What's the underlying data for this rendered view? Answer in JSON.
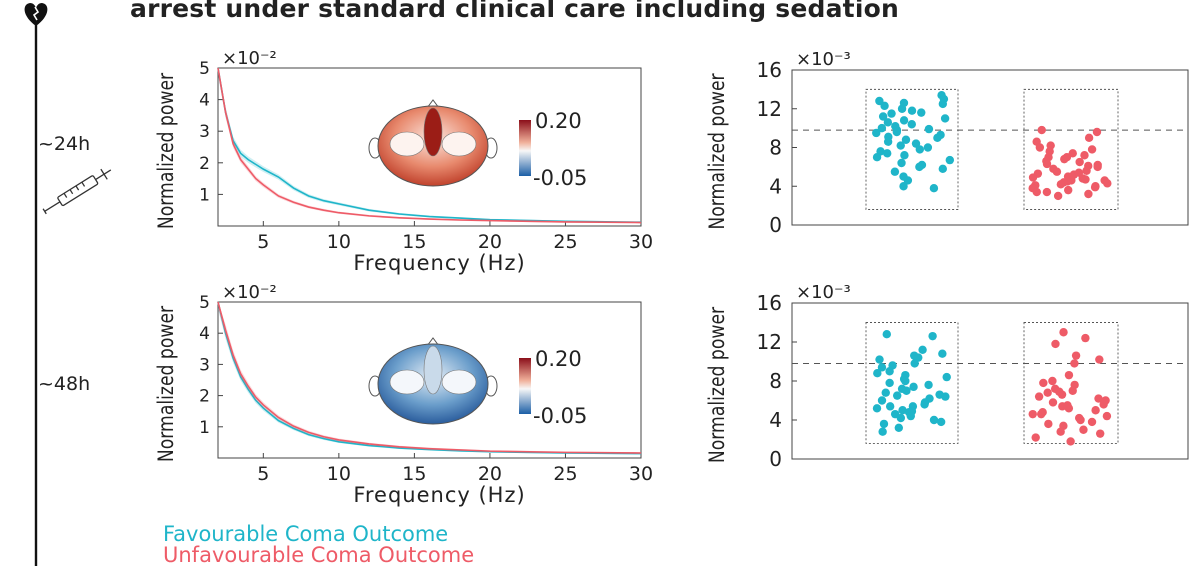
{
  "title": "arrest under standard clinical care including sedation",
  "timepoints": [
    "~24h",
    "~48h"
  ],
  "legend": [
    {
      "label": "Favourable Coma Outcome",
      "color": "#1fb5c9"
    },
    {
      "label": "Unfavourable Coma Outcome",
      "color": "#ee5b67"
    }
  ],
  "icons": [
    "heart-broken-icon",
    "syringe-icon"
  ],
  "chart_data": [
    {
      "type": "line",
      "panel": "spectrum-24h",
      "title": "",
      "xlabel": "Frequency (Hz)",
      "ylabel": "Normalized power",
      "ylim": [
        0,
        5
      ],
      "xlim": [
        2,
        30
      ],
      "exponent_label": "×10⁻²",
      "xticks": [
        "5",
        "10",
        "15",
        "20",
        "25",
        "30"
      ],
      "yticks": [
        "1",
        "2",
        "3",
        "4",
        "5"
      ],
      "x": [
        2,
        2.5,
        3,
        3.5,
        4,
        4.5,
        5,
        6,
        7,
        8,
        9,
        10,
        12,
        14,
        16,
        18,
        20,
        25,
        30
      ],
      "series": [
        {
          "name": "Favourable Coma Outcome",
          "color": "#1fb5c9",
          "values": [
            5.0,
            3.6,
            2.7,
            2.3,
            2.1,
            1.95,
            1.8,
            1.55,
            1.2,
            0.95,
            0.8,
            0.7,
            0.5,
            0.38,
            0.3,
            0.25,
            0.2,
            0.15,
            0.12
          ]
        },
        {
          "name": "Unfavourable Coma Outcome",
          "color": "#ee5b67",
          "values": [
            5.0,
            3.6,
            2.6,
            2.1,
            1.8,
            1.5,
            1.3,
            0.95,
            0.75,
            0.6,
            0.5,
            0.42,
            0.32,
            0.26,
            0.22,
            0.19,
            0.17,
            0.13,
            0.11
          ]
        }
      ],
      "topomap": {
        "style": "red",
        "colorbar_labels": [
          "0.20",
          "-0.05"
        ]
      }
    },
    {
      "type": "scatter",
      "panel": "scatter-24h",
      "title": "",
      "xlabel": "",
      "ylabel": "Normalized power",
      "ylim": [
        0,
        16
      ],
      "exponent_label": "×10⁻³",
      "yticks": [
        "0",
        "4",
        "8",
        "12",
        "16"
      ],
      "reference_line": 9.8,
      "groups": [
        {
          "name": "Favourable Coma Outcome",
          "color": "#1fb5c9",
          "values": [
            13.4,
            13.0,
            12.8,
            12.6,
            12.5,
            12.3,
            12.0,
            11.8,
            11.6,
            11.5,
            11.2,
            11.0,
            10.8,
            10.6,
            10.4,
            10.2,
            10.0,
            9.9,
            9.8,
            9.6,
            9.5,
            9.3,
            9.1,
            9.0,
            8.8,
            8.6,
            8.4,
            8.2,
            8.0,
            7.8,
            7.6,
            7.4,
            7.2,
            7.0,
            6.7,
            6.4,
            6.2,
            6.0,
            5.8,
            5.5,
            5.0,
            4.6,
            4.0,
            3.8
          ]
        },
        {
          "name": "Unfavourable Coma Outcome",
          "color": "#ee5b67",
          "values": [
            9.8,
            9.6,
            9.0,
            8.6,
            8.2,
            8.0,
            7.8,
            7.6,
            7.4,
            7.2,
            7.0,
            6.8,
            6.6,
            6.5,
            6.3,
            6.1,
            6.0,
            5.8,
            5.6,
            5.5,
            5.3,
            5.2,
            5.0,
            4.9,
            4.8,
            4.7,
            4.6,
            4.5,
            4.4,
            4.3,
            4.2,
            4.1,
            4.0,
            3.9,
            3.8,
            3.6,
            3.4,
            3.2,
            3.0,
            4.6,
            5.4,
            6.2,
            7.0,
            3.4
          ]
        }
      ]
    },
    {
      "type": "line",
      "panel": "spectrum-48h",
      "title": "",
      "xlabel": "Frequency (Hz)",
      "ylabel": "Normalized power",
      "ylim": [
        0,
        5
      ],
      "xlim": [
        2,
        30
      ],
      "exponent_label": "×10⁻²",
      "xticks": [
        "5",
        "10",
        "15",
        "20",
        "25",
        "30"
      ],
      "yticks": [
        "1",
        "2",
        "3",
        "4",
        "5"
      ],
      "x": [
        2,
        2.5,
        3,
        3.5,
        4,
        4.5,
        5,
        6,
        7,
        8,
        9,
        10,
        12,
        14,
        16,
        18,
        20,
        25,
        30
      ],
      "series": [
        {
          "name": "Favourable Coma Outcome",
          "color": "#1fb5c9",
          "values": [
            5.0,
            4.0,
            3.2,
            2.6,
            2.2,
            1.85,
            1.6,
            1.2,
            0.95,
            0.75,
            0.62,
            0.52,
            0.4,
            0.32,
            0.27,
            0.23,
            0.2,
            0.16,
            0.14
          ]
        },
        {
          "name": "Unfavourable Coma Outcome",
          "color": "#ee5b67",
          "values": [
            5.0,
            4.1,
            3.3,
            2.7,
            2.3,
            1.95,
            1.7,
            1.3,
            1.02,
            0.82,
            0.68,
            0.58,
            0.45,
            0.36,
            0.3,
            0.26,
            0.22,
            0.18,
            0.16
          ]
        }
      ],
      "topomap": {
        "style": "blue",
        "colorbar_labels": [
          "0.20",
          "-0.05"
        ]
      }
    },
    {
      "type": "scatter",
      "panel": "scatter-48h",
      "title": "",
      "xlabel": "",
      "ylabel": "Normalized power",
      "ylim": [
        0,
        16
      ],
      "exponent_label": "×10⁻³",
      "yticks": [
        "0",
        "4",
        "8",
        "12",
        "16"
      ],
      "reference_line": 9.8,
      "groups": [
        {
          "name": "Favourable Coma Outcome",
          "color": "#1fb5c9",
          "values": [
            12.8,
            12.6,
            11.2,
            10.8,
            10.6,
            10.4,
            10.2,
            9.8,
            9.6,
            9.4,
            9.0,
            8.8,
            8.6,
            8.4,
            8.2,
            8.0,
            7.8,
            7.6,
            7.4,
            7.2,
            7.0,
            6.8,
            6.6,
            6.4,
            6.2,
            6.0,
            5.8,
            5.6,
            5.4,
            5.2,
            5.0,
            4.9,
            4.8,
            4.6,
            4.4,
            4.2,
            4.0,
            3.8,
            3.6,
            3.2,
            2.8,
            5.4,
            6.5
          ]
        },
        {
          "name": "Unfavourable Coma Outcome",
          "color": "#ee5b67",
          "values": [
            13.0,
            12.4,
            11.8,
            10.6,
            10.2,
            9.8,
            8.6,
            8.0,
            7.8,
            7.6,
            7.2,
            7.0,
            6.8,
            6.6,
            6.4,
            6.2,
            6.0,
            5.8,
            5.6,
            5.4,
            5.2,
            5.0,
            4.8,
            4.6,
            4.4,
            4.2,
            4.0,
            3.8,
            3.6,
            3.4,
            3.0,
            2.8,
            2.6,
            2.2,
            1.8,
            5.5,
            6.9,
            4.6
          ]
        }
      ]
    }
  ]
}
